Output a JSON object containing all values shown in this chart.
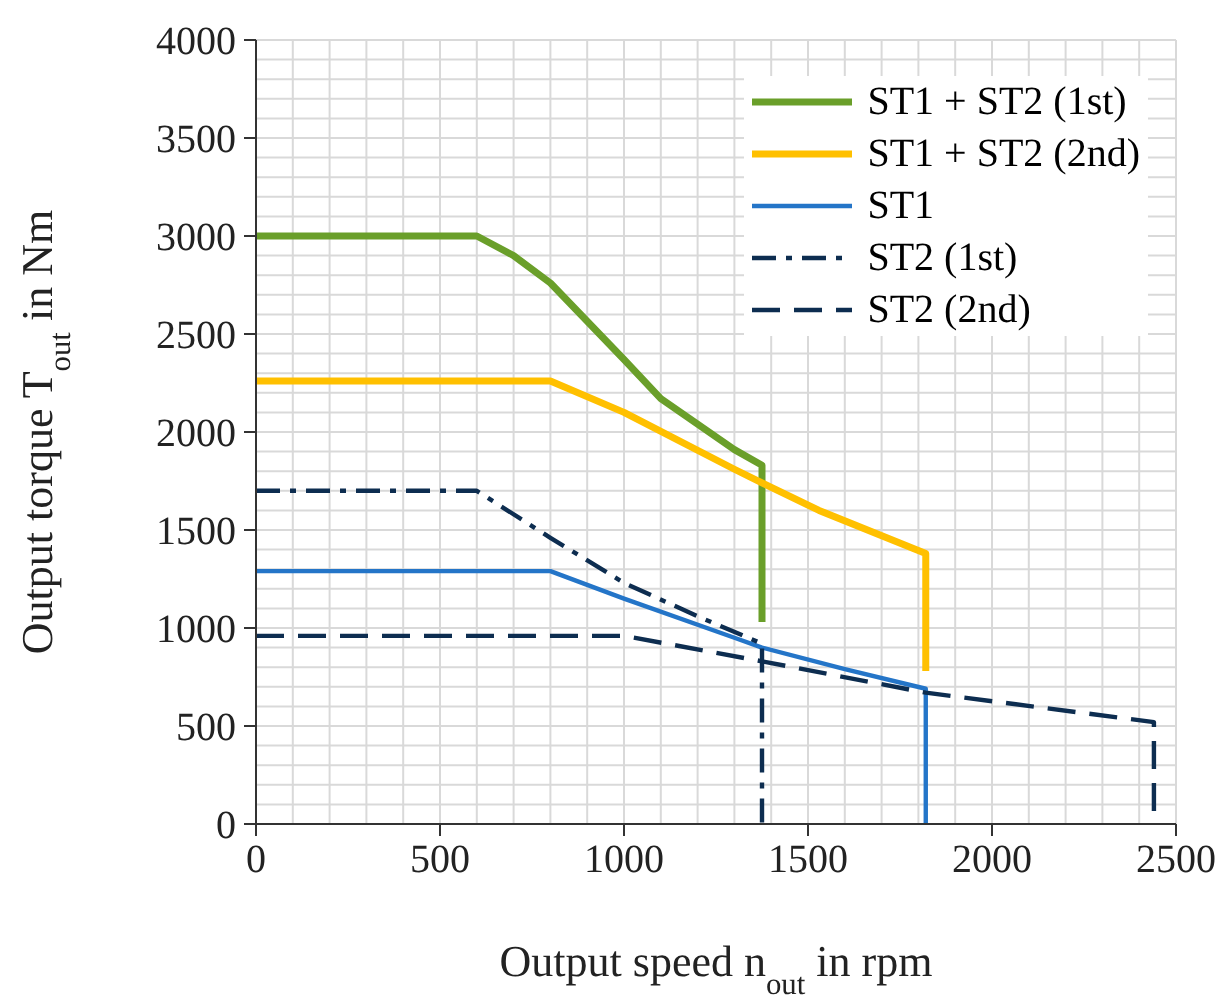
{
  "chart_data": {
    "type": "line",
    "xlabel": "Output speed n$_{out}$ in rpm",
    "ylabel": "Output torque T$_{out}$ in Nm",
    "xlim": [
      0,
      2500
    ],
    "xticks": [
      0,
      500,
      1000,
      1500,
      2000,
      2500
    ],
    "ylim": [
      0,
      4000
    ],
    "yticks": [
      0,
      500,
      1000,
      1500,
      2000,
      2500,
      3000,
      3500,
      4000
    ],
    "grid": true,
    "legend": "top right",
    "marker": "none",
    "series": [
      {
        "name": "ST1 + ST2 (1st)",
        "color": "#6a9f2a",
        "line_style": "solid",
        "x": [
          0,
          600,
          700,
          800,
          1000,
          1100,
          1300,
          1375,
          1375
        ],
        "values": [
          3000,
          3000,
          2900,
          2760,
          2370,
          2170,
          1910,
          1830,
          1030
        ]
      },
      {
        "name": "ST1 + ST2 (2nd)",
        "color": "#ffc000",
        "line_style": "solid",
        "x": [
          0,
          800,
          1000,
          1300,
          1375,
          1530,
          1820,
          1820
        ],
        "values": [
          2260,
          2260,
          2100,
          1810,
          1740,
          1600,
          1380,
          780
        ]
      },
      {
        "name": "ST1",
        "color": "#2475c8",
        "line_style": "solid",
        "x": [
          0,
          800,
          1000,
          1300,
          1375,
          1600,
          1820,
          1820
        ],
        "values": [
          1290,
          1290,
          1150,
          950,
          900,
          790,
          690,
          0
        ]
      },
      {
        "name": "ST2 (1st)",
        "color": "#0d2d50",
        "line_style": "dashdot",
        "x": [
          0,
          600,
          800,
          1000,
          1200,
          1375,
          1375
        ],
        "values": [
          1700,
          1700,
          1460,
          1230,
          1060,
          920,
          0
        ]
      },
      {
        "name": "ST2 (2nd)",
        "color": "#0d2d50",
        "line_style": "dashed",
        "x": [
          0,
          1000,
          1375,
          1820,
          2440,
          2440
        ],
        "values": [
          960,
          960,
          830,
          670,
          520,
          0
        ]
      }
    ]
  }
}
